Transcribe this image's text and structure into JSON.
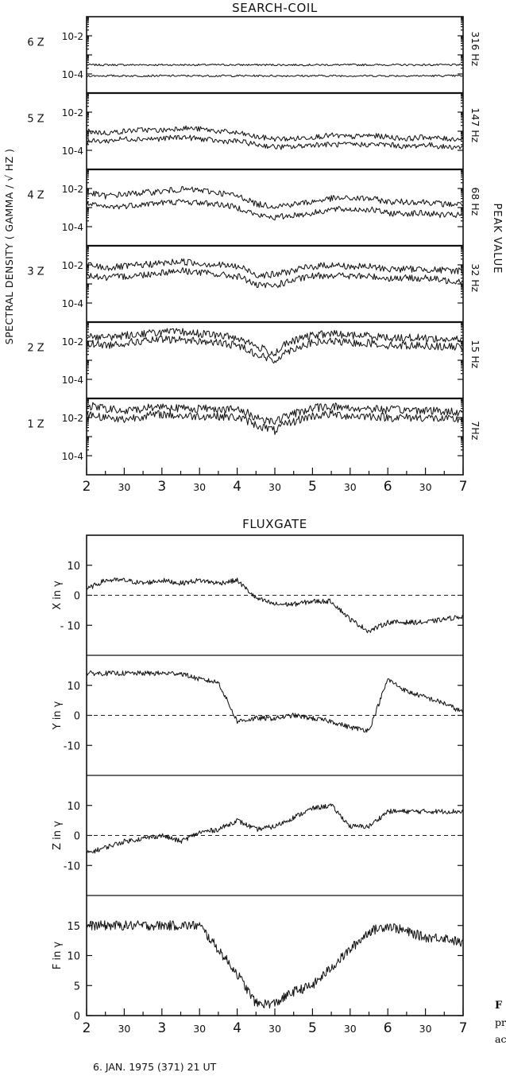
{
  "chart_data": [
    {
      "type": "line",
      "title": "SEARCH-COIL",
      "ylabel": "SPECTRAL DENSITY ( GAMMA / √ HZ )",
      "right_label": "PEAK VALUE",
      "yscale": "log",
      "x": [
        2.0,
        2.25,
        2.5,
        2.75,
        3.0,
        3.25,
        3.5,
        3.75,
        4.0,
        4.25,
        4.5,
        4.75,
        5.0,
        5.25,
        5.5,
        5.75,
        6.0,
        6.25,
        6.5,
        6.75,
        7.0
      ],
      "xtick_labels": [
        "2",
        "30",
        "3",
        "30",
        "4",
        "30",
        "5",
        "30",
        "6",
        "30",
        "7"
      ],
      "panels": [
        {
          "label": "6 Z",
          "freq": "316 Hz",
          "ytick_labels": [
            "10-2",
            "10-4"
          ],
          "ylim": [
            1e-05,
            0.1
          ],
          "series": [
            {
              "values": [
                0.0003,
                0.0003,
                0.0003,
                0.0003,
                0.0003,
                0.0003,
                0.0003,
                0.0003,
                0.0003,
                0.0003,
                0.0003,
                0.0003,
                0.0003,
                0.0003,
                0.0003,
                0.0003,
                0.0003,
                0.0003,
                0.0003,
                0.0003,
                0.0003
              ]
            },
            {
              "values": [
                8e-05,
                8e-05,
                8e-05,
                8e-05,
                8e-05,
                8e-05,
                8e-05,
                8e-05,
                8e-05,
                8e-05,
                8e-05,
                8e-05,
                8e-05,
                8e-05,
                8e-05,
                8e-05,
                8e-05,
                8e-05,
                8e-05,
                8e-05,
                8e-05
              ]
            }
          ]
        },
        {
          "label": "5 Z",
          "freq": "147 Hz",
          "ytick_labels": [
            "10-2",
            "10-4"
          ],
          "ylim": [
            1e-05,
            0.1
          ],
          "series": [
            {
              "values": [
                0.001,
                0.0008,
                0.001,
                0.0012,
                0.0011,
                0.0015,
                0.0013,
                0.001,
                0.0008,
                0.0005,
                0.0004,
                0.0004,
                0.0005,
                0.0006,
                0.0005,
                0.0006,
                0.0005,
                0.0004,
                0.0005,
                0.0004,
                0.0004
              ]
            },
            {
              "values": [
                0.0003,
                0.0003,
                0.0004,
                0.0004,
                0.0004,
                0.0005,
                0.0004,
                0.0003,
                0.0003,
                0.0002,
                0.00015,
                0.00015,
                0.0002,
                0.0002,
                0.0002,
                0.0002,
                0.0002,
                0.00015,
                0.0002,
                0.00015,
                0.00015
              ]
            }
          ]
        },
        {
          "label": "4 Z",
          "freq": "68 Hz",
          "ytick_labels": [
            "10-2",
            "10-4"
          ],
          "ylim": [
            1e-05,
            0.1
          ],
          "series": [
            {
              "values": [
                0.006,
                0.004,
                0.005,
                0.006,
                0.007,
                0.009,
                0.008,
                0.006,
                0.004,
                0.0015,
                0.0012,
                0.0015,
                0.002,
                0.003,
                0.003,
                0.003,
                0.002,
                0.002,
                0.002,
                0.0015,
                0.0015
              ]
            },
            {
              "values": [
                0.0015,
                0.001,
                0.0012,
                0.0015,
                0.0018,
                0.002,
                0.0018,
                0.0015,
                0.001,
                0.0004,
                0.0003,
                0.0004,
                0.0005,
                0.0008,
                0.0008,
                0.0008,
                0.0005,
                0.0005,
                0.0005,
                0.0004,
                0.0004
              ]
            }
          ]
        },
        {
          "label": "3 Z",
          "freq": "32 Hz",
          "ytick_labels": [
            "10-2",
            "10-4"
          ],
          "ylim": [
            1e-05,
            0.1
          ],
          "series": [
            {
              "values": [
                0.01,
                0.007,
                0.008,
                0.01,
                0.012,
                0.015,
                0.012,
                0.01,
                0.008,
                0.003,
                0.003,
                0.005,
                0.008,
                0.01,
                0.008,
                0.008,
                0.006,
                0.006,
                0.006,
                0.005,
                0.005
              ]
            },
            {
              "values": [
                0.003,
                0.002,
                0.0025,
                0.003,
                0.004,
                0.005,
                0.004,
                0.003,
                0.0025,
                0.0008,
                0.0008,
                0.0015,
                0.0025,
                0.003,
                0.0025,
                0.0025,
                0.002,
                0.002,
                0.002,
                0.0015,
                0.0015
              ]
            }
          ]
        },
        {
          "label": "2 Z",
          "freq": "15 Hz",
          "ytick_labels": [
            "10-2",
            "10-4"
          ],
          "ylim": [
            1e-05,
            0.1
          ],
          "series": [
            {
              "values": [
                0.02,
                0.015,
                0.02,
                0.025,
                0.03,
                0.03,
                0.025,
                0.02,
                0.015,
                0.005,
                0.002,
                0.01,
                0.02,
                0.025,
                0.02,
                0.02,
                0.015,
                0.015,
                0.015,
                0.012,
                0.012
              ]
            },
            {
              "values": [
                0.008,
                0.006,
                0.008,
                0.01,
                0.012,
                0.012,
                0.01,
                0.008,
                0.006,
                0.002,
                0.0008,
                0.004,
                0.008,
                0.01,
                0.008,
                0.008,
                0.006,
                0.006,
                0.006,
                0.005,
                0.005
              ]
            }
          ]
        },
        {
          "label": "1 Z",
          "freq": "7Hz",
          "ytick_labels": [
            "10-2",
            "10-4"
          ],
          "ylim": [
            1e-05,
            0.1
          ],
          "series": [
            {
              "values": [
                0.04,
                0.03,
                0.02,
                0.03,
                0.04,
                0.03,
                0.03,
                0.03,
                0.025,
                0.01,
                0.006,
                0.015,
                0.03,
                0.04,
                0.03,
                0.03,
                0.025,
                0.025,
                0.025,
                0.02,
                0.02
              ]
            },
            {
              "values": [
                0.015,
                0.01,
                0.008,
                0.012,
                0.015,
                0.012,
                0.012,
                0.012,
                0.01,
                0.004,
                0.002,
                0.006,
                0.012,
                0.015,
                0.012,
                0.012,
                0.01,
                0.01,
                0.01,
                0.008,
                0.008
              ]
            }
          ]
        }
      ]
    },
    {
      "type": "line",
      "title": "FLUXGATE",
      "xlabel": "6. JAN. 1975 (371) 21 UT",
      "x": [
        2.0,
        2.25,
        2.5,
        2.75,
        3.0,
        3.25,
        3.5,
        3.75,
        4.0,
        4.25,
        4.5,
        4.75,
        5.0,
        5.25,
        5.5,
        5.75,
        6.0,
        6.25,
        6.5,
        6.75,
        7.0
      ],
      "xtick_labels": [
        "2",
        "30",
        "3",
        "30",
        "4",
        "30",
        "5",
        "30",
        "6",
        "30",
        "7"
      ],
      "panels": [
        {
          "label": "X in γ",
          "ylim": [
            -20,
            20
          ],
          "yticks": [
            10,
            0,
            -10
          ],
          "ytick_labels": [
            "10",
            "0",
            "- 10"
          ],
          "zero_line": true,
          "values": [
            2,
            5,
            5,
            4,
            5,
            4,
            5,
            4,
            5,
            -1,
            -3,
            -3,
            -2,
            -2,
            -8,
            -12,
            -9,
            -9,
            -9,
            -8,
            -7
          ]
        },
        {
          "label": "Y in γ",
          "ylim": [
            -20,
            20
          ],
          "yticks": [
            10,
            0,
            -10
          ],
          "ytick_labels": [
            "10",
            "0",
            "-10"
          ],
          "zero_line": true,
          "values": [
            14,
            14,
            14,
            14,
            14,
            14,
            12,
            11,
            -2,
            -1,
            -1,
            0,
            -1,
            -2,
            -4,
            -5,
            12,
            8,
            6,
            4,
            1
          ]
        },
        {
          "label": "Z in γ",
          "ylim": [
            -20,
            20
          ],
          "yticks": [
            10,
            0,
            -10
          ],
          "ytick_labels": [
            "10",
            "0",
            "-10"
          ],
          "zero_line": true,
          "values": [
            -6,
            -4,
            -2,
            -1,
            0,
            -2,
            1,
            2,
            5,
            2,
            3,
            6,
            9,
            10,
            3,
            3,
            8,
            8,
            8,
            8,
            8
          ]
        },
        {
          "label": "F in γ",
          "ylim": [
            0,
            20
          ],
          "yticks": [
            15,
            10,
            5,
            0
          ],
          "ytick_labels": [
            "15",
            "10",
            "5",
            "0"
          ],
          "zero_line": false,
          "values": [
            15,
            15,
            15,
            15,
            15,
            15,
            15,
            11,
            7,
            2,
            2,
            4,
            5,
            8,
            11,
            14,
            15,
            14,
            13,
            13,
            12
          ]
        }
      ]
    }
  ],
  "side_fragments": [
    "F",
    "pr",
    "ac"
  ]
}
